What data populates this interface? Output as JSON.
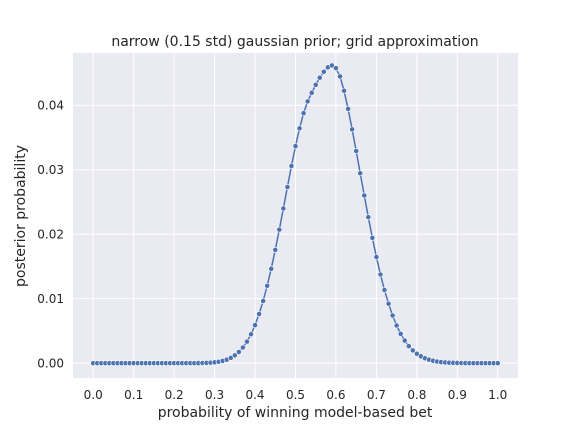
{
  "chart_data": {
    "type": "line",
    "title": "narrow (0.15 std) gaussian prior; grid approximation",
    "xlabel": "probability of winning model-based bet",
    "ylabel": "posterior probability",
    "xlim": [
      -0.05,
      1.05
    ],
    "ylim": [
      -0.0023,
      0.0481
    ],
    "xticks": [
      0.0,
      0.1,
      0.2,
      0.3,
      0.4,
      0.5,
      0.6,
      0.7,
      0.8,
      0.9,
      1.0
    ],
    "xtick_labels": [
      "0.0",
      "0.1",
      "0.2",
      "0.3",
      "0.4",
      "0.5",
      "0.6",
      "0.7",
      "0.8",
      "0.9",
      "1.0"
    ],
    "yticks": [
      0.0,
      0.01,
      0.02,
      0.03,
      0.04
    ],
    "ytick_labels": [
      "0.00",
      "0.01",
      "0.02",
      "0.03",
      "0.04"
    ],
    "grid": true,
    "marker": "circle",
    "series": [
      {
        "x": [
          0.0,
          0.01,
          0.02,
          0.03,
          0.04,
          0.05,
          0.06,
          0.07,
          0.08,
          0.09,
          0.1,
          0.11,
          0.12,
          0.13,
          0.14,
          0.15,
          0.16,
          0.17,
          0.18,
          0.19,
          0.2,
          0.21,
          0.22,
          0.23,
          0.24,
          0.25,
          0.26,
          0.27,
          0.28,
          0.29,
          0.3,
          0.31,
          0.32,
          0.33,
          0.34,
          0.35,
          0.36,
          0.37,
          0.38,
          0.39,
          0.4,
          0.41,
          0.42,
          0.43,
          0.44,
          0.45,
          0.46,
          0.47,
          0.48,
          0.49,
          0.5,
          0.51,
          0.52,
          0.53,
          0.54,
          0.55,
          0.56,
          0.57,
          0.58,
          0.59,
          0.6,
          0.61,
          0.62,
          0.63,
          0.64,
          0.65,
          0.66,
          0.67,
          0.68,
          0.69,
          0.7,
          0.71,
          0.72,
          0.73,
          0.74,
          0.75,
          0.76,
          0.77,
          0.78,
          0.79,
          0.8,
          0.81,
          0.82,
          0.83,
          0.84,
          0.85,
          0.86,
          0.87,
          0.88,
          0.89,
          0.9,
          0.91,
          0.92,
          0.93,
          0.94,
          0.95,
          0.96,
          0.97,
          0.98,
          0.99,
          1.0
        ],
        "y": [
          0.0,
          0.0,
          0.0,
          0.0,
          0.0,
          0.0,
          0.0,
          0.0,
          0.0,
          0.0,
          0.0,
          0.0,
          0.0,
          0.0,
          0.0,
          0.0,
          0.0,
          0.0,
          0.0,
          0.0,
          0.0,
          0.0,
          0.0,
          0.0,
          0.0,
          0.0,
          1e-05,
          2e-05,
          4e-05,
          8e-05,
          0.00013,
          0.00022,
          0.00035,
          0.00054,
          0.00082,
          0.00121,
          0.00173,
          0.00243,
          0.00334,
          0.00448,
          0.0059,
          0.00762,
          0.00965,
          0.012,
          0.01465,
          0.01757,
          0.02071,
          0.02399,
          0.02732,
          0.03058,
          0.03365,
          0.03642,
          0.03876,
          0.04059,
          0.04192,
          0.04316,
          0.04427,
          0.04519,
          0.04588,
          0.04617,
          0.04575,
          0.04446,
          0.04225,
          0.03943,
          0.03626,
          0.0329,
          0.02945,
          0.02601,
          0.02264,
          0.01944,
          0.01646,
          0.01375,
          0.01134,
          0.00922,
          0.00739,
          0.00584,
          0.00455,
          0.0035,
          0.00265,
          0.00198,
          0.00146,
          0.00106,
          0.00076,
          0.00054,
          0.00037,
          0.00025,
          0.00017,
          0.00011,
          7e-05,
          5e-05,
          3e-05,
          2e-05,
          1e-05,
          0.0,
          0.0,
          0.0,
          0.0,
          0.0,
          0.0,
          0.0,
          0.0
        ],
        "color": "#4c72b0"
      }
    ]
  }
}
